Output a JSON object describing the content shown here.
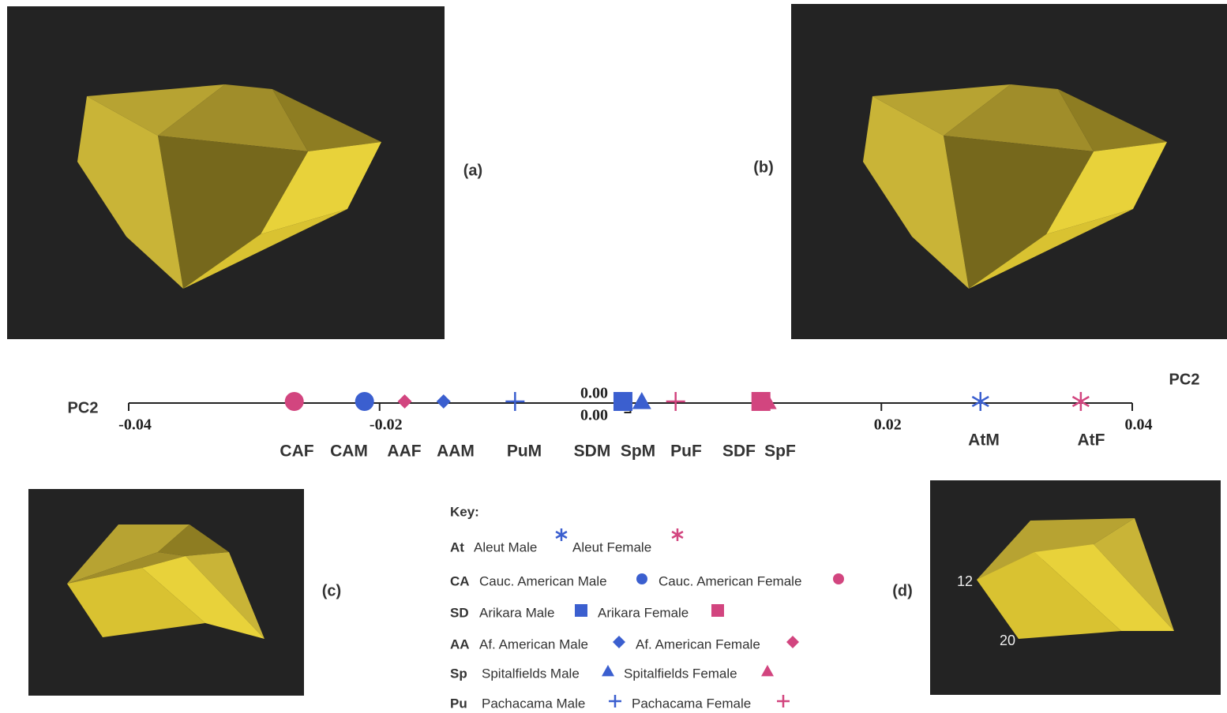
{
  "panels": [
    {
      "label": "(a)"
    },
    {
      "label": "(b)"
    },
    {
      "label": "(c)"
    },
    {
      "label": "(d)",
      "annotations": [
        "12",
        "20"
      ]
    }
  ],
  "chart_data": {
    "type": "strip",
    "xlabel": "PC2",
    "xlim": [
      -0.04,
      0.04
    ],
    "xticks": [
      -0.04,
      -0.02,
      {
        "value": 0,
        "label": "0.00"
      },
      0.02,
      0.04
    ],
    "categories": [
      "CAF",
      "CAM",
      "AAF",
      "AAM",
      "PuM",
      "SDM",
      "SpM",
      "PuF",
      "SDF",
      "SpF",
      "AtM",
      "AtF"
    ],
    "values": [
      -0.0268,
      -0.0212,
      -0.018,
      -0.0149,
      -0.0092,
      -0.0006,
      0.0009,
      0.0036,
      0.0104,
      0.0109,
      0.0279,
      0.0359
    ],
    "markers": [
      "circle",
      "circle",
      "diamond",
      "diamond",
      "plus",
      "square",
      "triangle",
      "plus",
      "square",
      "triangle",
      "asterisk",
      "asterisk"
    ],
    "colors": [
      "#d2457f",
      "#3b5fcf",
      "#d2457f",
      "#3b5fcf",
      "#3b5fcf",
      "#3b5fcf",
      "#3b5fcf",
      "#d2457f",
      "#d2457f",
      "#d2457f",
      "#3b5fcf",
      "#d2457f"
    ]
  },
  "key": {
    "title": "Key:",
    "male_color": "#3b5fcf",
    "female_color": "#d2457f",
    "rows": [
      {
        "code": "At",
        "male": "Aleut Male",
        "female": "Aleut Female",
        "marker": "asterisk"
      },
      {
        "code": "CA",
        "male": "Cauc. American Male",
        "female": "Cauc. American Female",
        "marker": "circle"
      },
      {
        "code": "SD",
        "male": "Arikara Male",
        "female": "Arikara Female",
        "marker": "square"
      },
      {
        "code": "AA",
        "male": "Af. American Male",
        "female": "Af. American Female",
        "marker": "diamond"
      },
      {
        "code": "Sp",
        "male": "Spitalfields Male",
        "female": "Spitalfields Female",
        "marker": "triangle"
      },
      {
        "code": "Pu",
        "male": "Pachacama Male",
        "female": "Pachacama Female",
        "marker": "plus"
      }
    ]
  }
}
